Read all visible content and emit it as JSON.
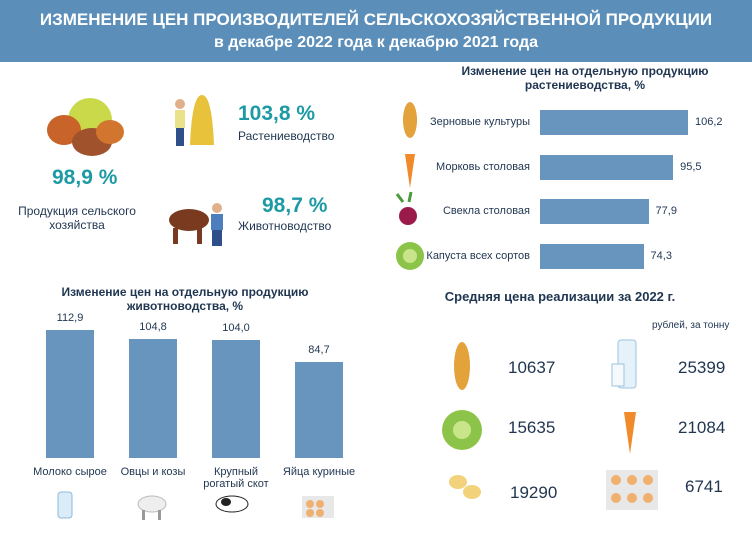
{
  "header": {
    "title": "ИЗМЕНЕНИЕ ЦЕН ПРОИЗВОДИТЕЛЕЙ СЕЛЬСКОХОЗЯЙСТВЕННОЙ ПРОДУКЦИИ",
    "subtitle": "в декабре 2022 года к декабрю 2021 года"
  },
  "summary": {
    "total": {
      "value": "98,9 %",
      "label": "Продукция сельского хозяйства"
    },
    "crops": {
      "value": "103,8 %",
      "label": "Растениеводство"
    },
    "livestock": {
      "value": "98,7 %",
      "label": "Животноводство"
    }
  },
  "chart_data": [
    {
      "type": "bar",
      "orientation": "horizontal",
      "title": "Изменение цен на отдельную продукцию растениеводства, %",
      "categories": [
        "Зерновые культуры",
        "Морковь столовая",
        "Свекла столовая",
        "Капуста всех сортов"
      ],
      "values": [
        106.2,
        95.5,
        77.9,
        74.3
      ],
      "value_labels": [
        "106,2",
        "95,5",
        "77,9",
        "74,3"
      ],
      "color": "#6795bd"
    },
    {
      "type": "bar",
      "orientation": "vertical",
      "title": "Изменение цен на отдельную продукцию животноводства, %",
      "categories": [
        "Молоко сырое",
        "Овцы и козы",
        "Крупный рогатый скот",
        "Яйца куриные"
      ],
      "values": [
        112.9,
        104.8,
        104.0,
        84.7
      ],
      "value_labels": [
        "112,9",
        "104,8",
        "104,0",
        "84,7"
      ],
      "color": "#6795bd"
    }
  ],
  "prices": {
    "title": "Средняя цена реализации за 2022 г.",
    "unit": "рублей, за тонну",
    "values": [
      10637,
      25399,
      15635,
      21084,
      19290,
      6741
    ]
  }
}
